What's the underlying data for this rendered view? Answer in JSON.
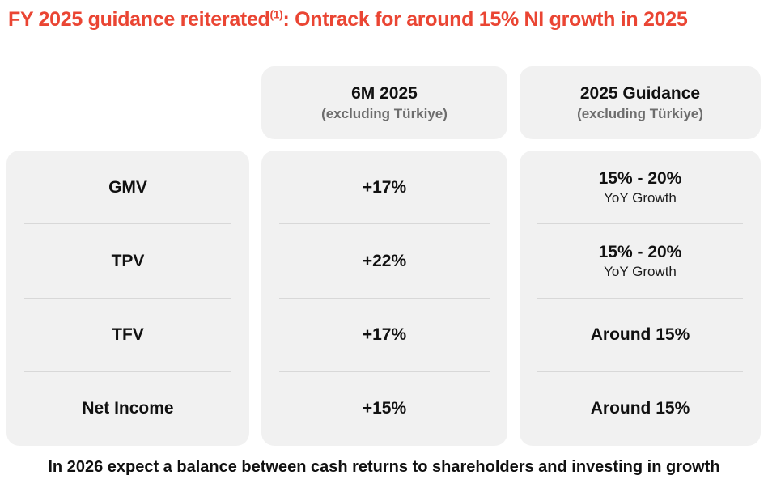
{
  "title": {
    "prefix": "FY 2025 guidance reiterated",
    "superscript": "(1)",
    "suffix": ": Ontrack for around 15% NI growth in 2025"
  },
  "colors": {
    "accent": "#EA4533",
    "card_background": "#F1F1F1",
    "divider": "#D8D8D8",
    "subtitle_gray": "#6D6D6D",
    "text": "#111111"
  },
  "table": {
    "columns": [
      {
        "title": "6M 2025",
        "subtitle": "(excluding Türkiye)"
      },
      {
        "title": "2025 Guidance",
        "subtitle": "(excluding Türkiye)"
      }
    ],
    "rows": [
      {
        "label": "GMV",
        "six_m_value": "+17%",
        "guidance_value": "15% - 20%",
        "guidance_note": "YoY Growth"
      },
      {
        "label": "TPV",
        "six_m_value": "+22%",
        "guidance_value": "15% - 20%",
        "guidance_note": "YoY Growth"
      },
      {
        "label": "TFV",
        "six_m_value": "+17%",
        "guidance_value": "Around 15%",
        "guidance_note": ""
      },
      {
        "label": "Net Income",
        "six_m_value": "+15%",
        "guidance_value": "Around 15%",
        "guidance_note": ""
      }
    ]
  },
  "footer": {
    "text": "In 2026 expect a balance between cash returns to shareholders and investing in growth"
  }
}
